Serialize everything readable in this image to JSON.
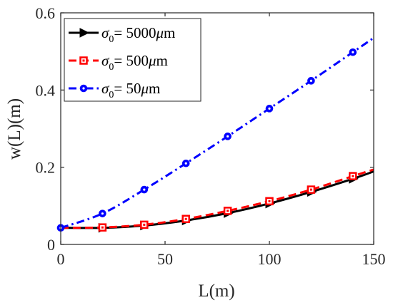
{
  "chart_data": {
    "type": "line",
    "xlabel": "L(m)",
    "ylabel": "w(L)(m)",
    "xlim": [
      0,
      150
    ],
    "ylim": [
      0,
      0.6
    ],
    "xticks": [
      "0",
      "50",
      "100",
      "150"
    ],
    "yticks": [
      "0",
      "0.2",
      "0.4",
      "0.6"
    ],
    "grid": false,
    "legend_position": "top-left",
    "x": [
      0,
      20,
      40,
      60,
      80,
      100,
      120,
      140,
      150
    ],
    "series": [
      {
        "name": "σ0= 5000μm",
        "label_symbol": "σ",
        "label_sub": "0",
        "label_value": "= 5000",
        "label_mu": "μ",
        "label_unit": "m",
        "values": [
          0.043,
          0.043,
          0.049,
          0.062,
          0.081,
          0.106,
          0.136,
          0.17,
          0.189
        ],
        "color": "#000000",
        "line_style": "solid",
        "marker": "triangle-right"
      },
      {
        "name": "σ0= 500μm",
        "label_symbol": "σ",
        "label_sub": "0",
        "label_value": "= 500",
        "label_mu": "μ",
        "label_unit": "m",
        "values": [
          0.043,
          0.044,
          0.051,
          0.066,
          0.087,
          0.112,
          0.142,
          0.177,
          0.194
        ],
        "color": "#ff0000",
        "line_style": "dashed",
        "marker": "square"
      },
      {
        "name": "σ0= 50μm",
        "label_symbol": "σ",
        "label_sub": "0",
        "label_value": "= 50",
        "label_mu": "μ",
        "label_unit": "m",
        "values": [
          0.043,
          0.08,
          0.142,
          0.21,
          0.28,
          0.352,
          0.424,
          0.498,
          0.535
        ],
        "color": "#0000ff",
        "line_style": "dashdot",
        "marker": "circle"
      }
    ]
  }
}
